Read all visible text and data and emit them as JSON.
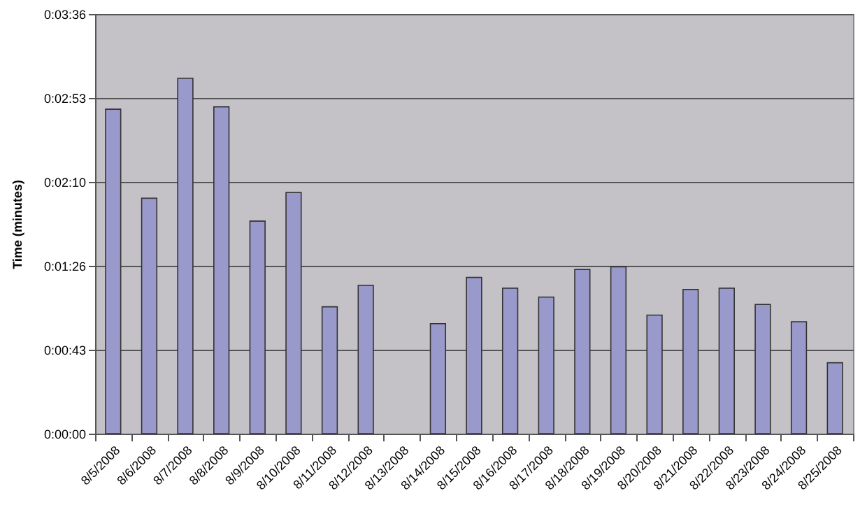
{
  "chart_data": {
    "type": "bar",
    "ylabel": "Time (minutes)",
    "categories": [
      "8/5/2008",
      "8/6/2008",
      "8/7/2008",
      "8/8/2008",
      "8/9/2008",
      "8/10/2008",
      "8/11/2008",
      "8/12/2008",
      "8/13/2008",
      "8/14/2008",
      "8/15/2008",
      "8/16/2008",
      "8/17/2008",
      "8/18/2008",
      "8/19/2008",
      "8/20/2008",
      "8/21/2008",
      "8/22/2008",
      "8/23/2008",
      "8/24/2008",
      "8/25/2008"
    ],
    "values": [
      167.0,
      121.2,
      182.9,
      168.2,
      109.4,
      124.1,
      65.3,
      76.3,
      null,
      56.6,
      80.4,
      74.9,
      70.3,
      84.5,
      85.9,
      61.0,
      74.2,
      74.9,
      66.5,
      57.6,
      36.5
    ],
    "color": "#9999cc",
    "ylim": [
      0,
      216
    ],
    "yticks": [
      {
        "value": 0,
        "label": "0:00:00"
      },
      {
        "value": 43.2,
        "label": "0:00:43"
      },
      {
        "value": 86.4,
        "label": "0:01:26"
      },
      {
        "value": 129.6,
        "label": "0:02:10"
      },
      {
        "value": 172.8,
        "label": "0:02:53"
      },
      {
        "value": 216,
        "label": "0:03:36"
      }
    ],
    "grid": "y"
  }
}
